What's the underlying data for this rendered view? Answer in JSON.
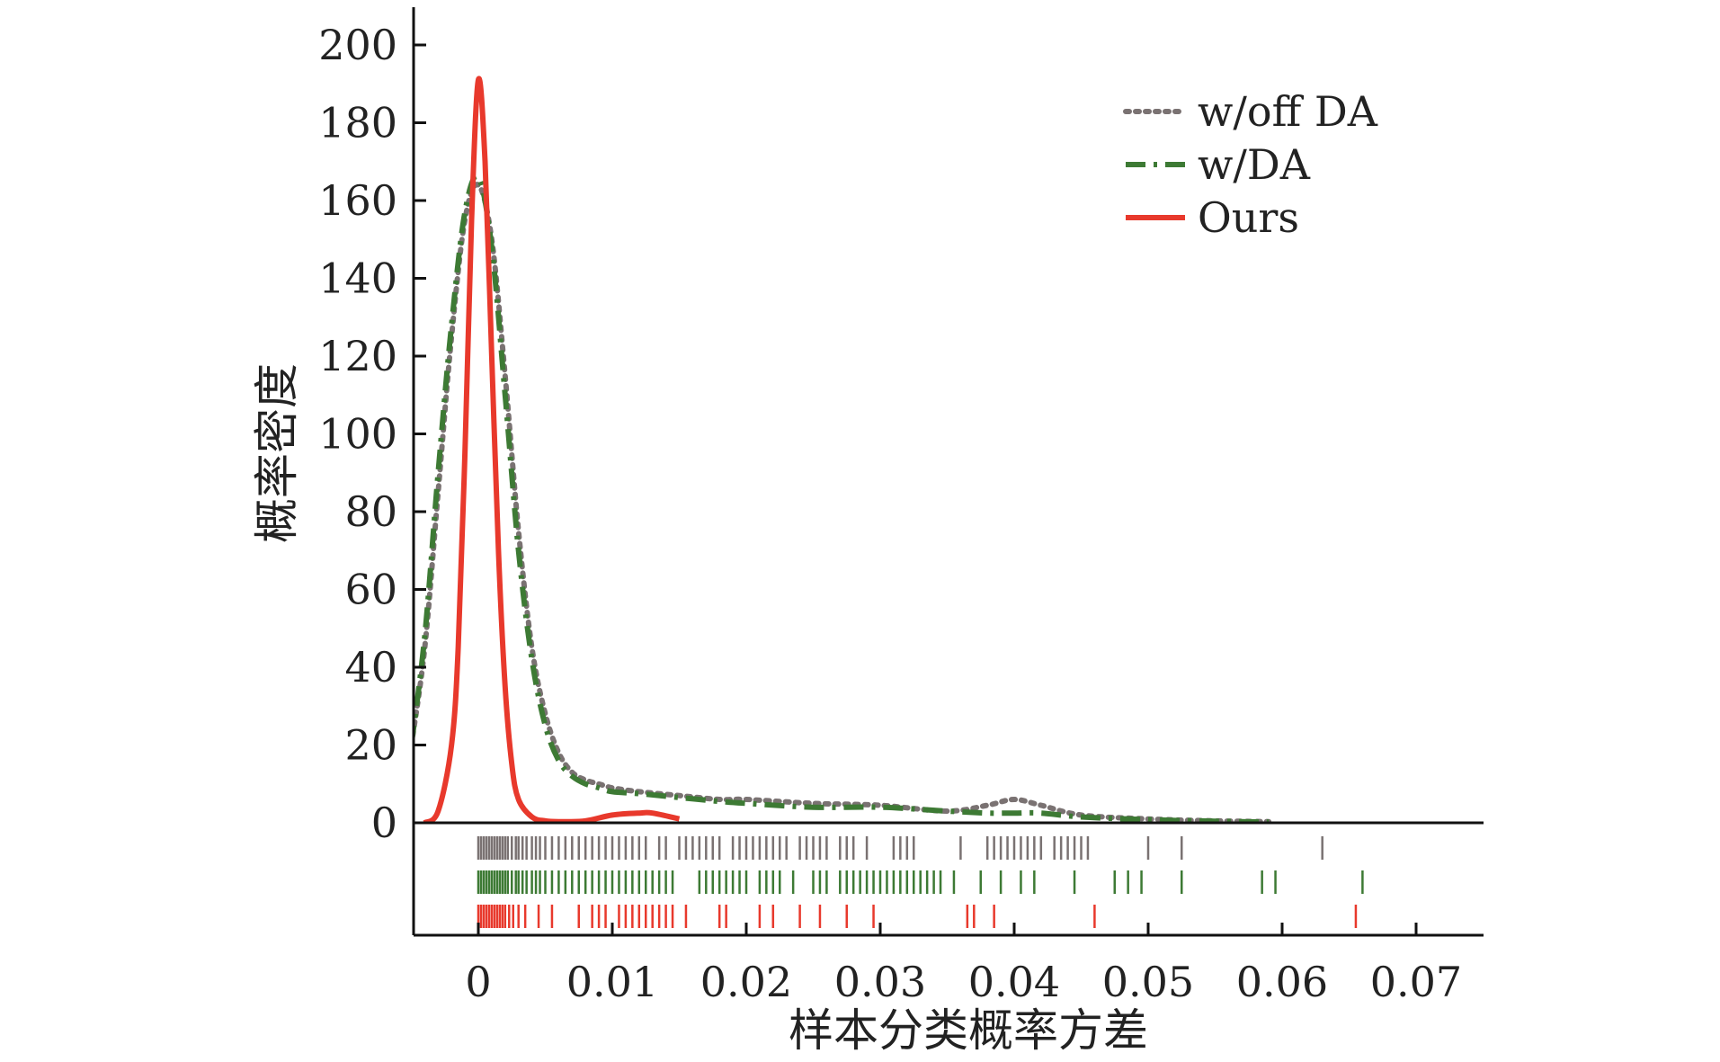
{
  "chart_data": {
    "type": "line",
    "title": "",
    "xlabel": "样本分类概率方差",
    "ylabel": "概率密度",
    "xlim": [
      -0.005,
      0.075
    ],
    "ylim": [
      0,
      210
    ],
    "x_ticks": [
      "0",
      "0.01",
      "0.02",
      "0.03",
      "0.04",
      "0.05",
      "0.06",
      "0.07"
    ],
    "x_tick_values": [
      0,
      0.01,
      0.02,
      0.03,
      0.04,
      0.05,
      0.06,
      0.07
    ],
    "y_ticks": [
      "0",
      "20",
      "40",
      "60",
      "80",
      "100",
      "120",
      "140",
      "160",
      "180",
      "200"
    ],
    "y_tick_values": [
      0,
      20,
      40,
      60,
      80,
      100,
      120,
      140,
      160,
      180,
      200
    ],
    "grid": false,
    "legend_position": "top-right",
    "series": [
      {
        "name": "w/off DA",
        "color": "#7a7272",
        "style": "dotted",
        "x": [
          -0.005,
          -0.004,
          -0.003,
          -0.002,
          -0.001,
          0,
          0.001,
          0.002,
          0.003,
          0.004,
          0.005,
          0.006,
          0.007,
          0.008,
          0.009,
          0.01,
          0.012,
          0.015,
          0.018,
          0.02,
          0.025,
          0.03,
          0.035,
          0.038,
          0.04,
          0.042,
          0.045,
          0.05,
          0.055,
          0.059
        ],
        "y": [
          20,
          45,
          85,
          125,
          155,
          164,
          150,
          115,
          75,
          45,
          28,
          18,
          13,
          11,
          10,
          9,
          8,
          7,
          6,
          6,
          5,
          4.5,
          3,
          4.5,
          6,
          4.5,
          2,
          1,
          0.5,
          0.3
        ]
      },
      {
        "name": "w/DA",
        "color": "#3d7a34",
        "style": "dash-dot",
        "x": [
          -0.005,
          -0.004,
          -0.003,
          -0.002,
          -0.001,
          0,
          0.001,
          0.002,
          0.003,
          0.004,
          0.005,
          0.006,
          0.007,
          0.008,
          0.009,
          0.01,
          0.012,
          0.015,
          0.018,
          0.02,
          0.025,
          0.03,
          0.035,
          0.038,
          0.04,
          0.042,
          0.045,
          0.05,
          0.055,
          0.059
        ],
        "y": [
          20,
          48,
          90,
          128,
          157,
          166,
          148,
          110,
          70,
          42,
          25,
          16,
          12,
          10,
          9,
          8,
          7.5,
          6.5,
          5.5,
          5,
          4,
          4,
          3,
          2.5,
          2.5,
          2.5,
          1.5,
          0.8,
          0.4,
          0.2
        ]
      },
      {
        "name": "Ours",
        "color": "#e8392c",
        "style": "solid",
        "x": [
          -0.004,
          -0.003,
          -0.002,
          -0.0015,
          -0.001,
          -0.0005,
          0,
          0.0005,
          0.001,
          0.0015,
          0.002,
          0.0025,
          0.003,
          0.004,
          0.005,
          0.006,
          0.008,
          0.01,
          0.012,
          0.013,
          0.015
        ],
        "y": [
          0,
          3,
          20,
          45,
          95,
          155,
          191,
          170,
          120,
          70,
          35,
          15,
          6,
          1.5,
          0.5,
          0.3,
          0.5,
          2,
          2.5,
          2.5,
          1
        ]
      }
    ],
    "rug": [
      {
        "name": "w/off DA",
        "color": "#7a7272",
        "x": [
          0,
          0.0002,
          0.0004,
          0.0006,
          0.0008,
          0.001,
          0.0012,
          0.0014,
          0.0016,
          0.0018,
          0.002,
          0.0022,
          0.0025,
          0.0028,
          0.003,
          0.0033,
          0.0036,
          0.004,
          0.0043,
          0.0046,
          0.005,
          0.0055,
          0.006,
          0.0065,
          0.007,
          0.0075,
          0.008,
          0.0085,
          0.009,
          0.0095,
          0.01,
          0.0105,
          0.011,
          0.0115,
          0.012,
          0.0125,
          0.0135,
          0.014,
          0.015,
          0.0155,
          0.016,
          0.0165,
          0.017,
          0.0175,
          0.018,
          0.019,
          0.0195,
          0.02,
          0.0205,
          0.021,
          0.0215,
          0.022,
          0.0225,
          0.023,
          0.024,
          0.0245,
          0.025,
          0.0255,
          0.026,
          0.027,
          0.0275,
          0.028,
          0.029,
          0.031,
          0.0315,
          0.032,
          0.0325,
          0.036,
          0.038,
          0.0385,
          0.039,
          0.0395,
          0.04,
          0.0405,
          0.041,
          0.0415,
          0.042,
          0.043,
          0.0435,
          0.044,
          0.0445,
          0.045,
          0.0455,
          0.05,
          0.0525,
          0.063
        ]
      },
      {
        "name": "w/DA",
        "color": "#3d7a34",
        "x": [
          0,
          0.0002,
          0.0004,
          0.0006,
          0.0008,
          0.001,
          0.0012,
          0.0014,
          0.0016,
          0.0018,
          0.002,
          0.0022,
          0.0025,
          0.0028,
          0.003,
          0.0033,
          0.0036,
          0.004,
          0.0043,
          0.0046,
          0.005,
          0.0055,
          0.006,
          0.0065,
          0.007,
          0.0075,
          0.008,
          0.0085,
          0.009,
          0.0095,
          0.01,
          0.0105,
          0.011,
          0.0115,
          0.012,
          0.0125,
          0.013,
          0.0135,
          0.014,
          0.0145,
          0.0165,
          0.017,
          0.0175,
          0.018,
          0.0185,
          0.019,
          0.0195,
          0.02,
          0.021,
          0.0215,
          0.022,
          0.0225,
          0.0235,
          0.025,
          0.0255,
          0.026,
          0.027,
          0.0275,
          0.028,
          0.0285,
          0.029,
          0.0295,
          0.03,
          0.0305,
          0.031,
          0.0315,
          0.032,
          0.0325,
          0.033,
          0.0335,
          0.034,
          0.0345,
          0.0355,
          0.0375,
          0.039,
          0.0405,
          0.0415,
          0.0445,
          0.0475,
          0.0485,
          0.0495,
          0.0525,
          0.0585,
          0.0595,
          0.066
        ]
      },
      {
        "name": "Ours",
        "color": "#e8392c",
        "x": [
          0,
          0.0002,
          0.0004,
          0.0006,
          0.0008,
          0.001,
          0.0012,
          0.0014,
          0.0016,
          0.0018,
          0.002,
          0.0023,
          0.0026,
          0.003,
          0.0035,
          0.0045,
          0.0055,
          0.0075,
          0.0085,
          0.009,
          0.0095,
          0.0105,
          0.011,
          0.0115,
          0.012,
          0.0125,
          0.013,
          0.0135,
          0.014,
          0.0145,
          0.0155,
          0.018,
          0.0185,
          0.021,
          0.022,
          0.024,
          0.0255,
          0.0275,
          0.0295,
          0.0365,
          0.037,
          0.0385,
          0.046,
          0.0655
        ]
      }
    ]
  }
}
